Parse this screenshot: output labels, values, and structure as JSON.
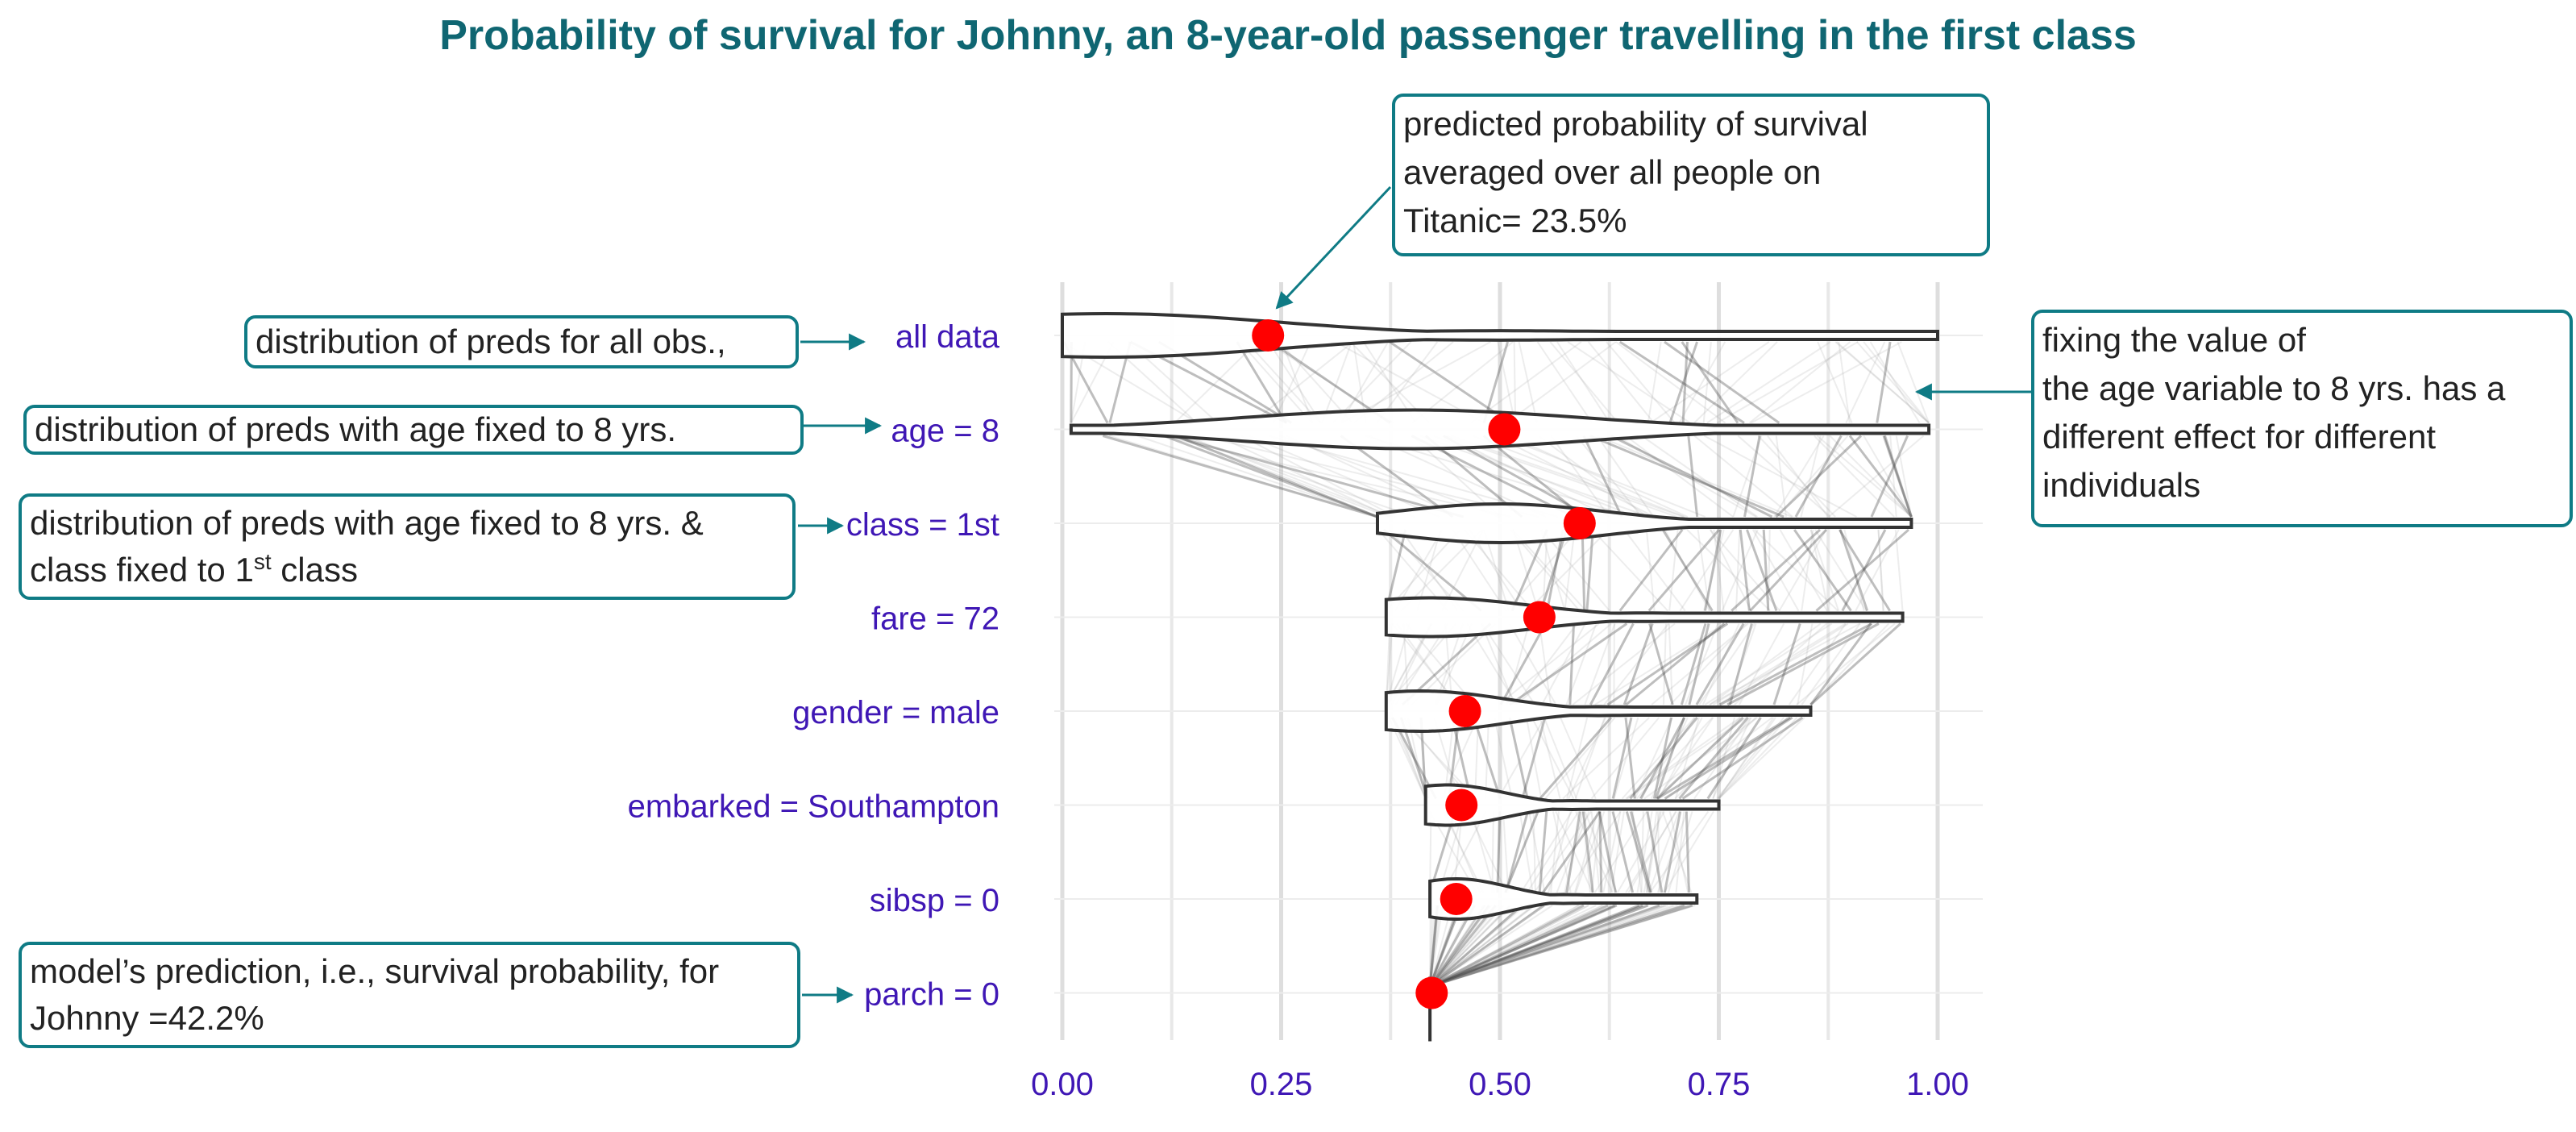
{
  "title": "Probability of survival for Johnny, an 8-year-old passenger travelling in the first class",
  "colors": {
    "title": "#0f6672",
    "axis_text": "#3f17b5",
    "callout_border": "#0f7b85",
    "dot": "#ff0000",
    "violin_stroke": "#333333",
    "grid": "#e6e6e6"
  },
  "chart_data": {
    "type": "violin",
    "title": "Probability of survival for Johnny, an 8-year-old passenger travelling in the first class",
    "xlim": [
      0,
      1.05
    ],
    "x_ticks": [
      0.0,
      0.25,
      0.5,
      0.75,
      1.0
    ],
    "x_tick_labels": [
      "0.00",
      "0.25",
      "0.50",
      "0.75",
      "1.00"
    ],
    "grid": true,
    "categories": [
      "all data",
      "age = 8",
      "class = 1st",
      "fare = 72",
      "gender = male",
      "embarked = Southampton",
      "sibsp = 0",
      "parch = 0"
    ],
    "mean_prediction": [
      0.235,
      0.505,
      0.591,
      0.545,
      0.46,
      0.456,
      0.45,
      0.422
    ],
    "violin_range": [
      [
        0.0,
        1.0
      ],
      [
        0.01,
        0.99
      ],
      [
        0.36,
        0.97
      ],
      [
        0.37,
        0.96
      ],
      [
        0.37,
        0.855
      ],
      [
        0.415,
        0.75
      ],
      [
        0.42,
        0.725
      ],
      [
        0.42,
        0.42
      ]
    ],
    "violin_mode": [
      0.05,
      0.4,
      0.5,
      0.42,
      0.41,
      0.44,
      0.45,
      0.43
    ]
  },
  "callouts": {
    "mean": {
      "lines": [
        " predicted probability of survival",
        "averaged over all people on",
        "Titanic= 23.5%"
      ]
    },
    "all_obs": {
      "text": " distribution of preds for all obs.,"
    },
    "age": {
      "text": " distribution of preds with age fixed to 8 yrs."
    },
    "class": {
      "line1": " distribution of preds with age fixed to 8 yrs. &",
      "line2_pre": "class fixed to 1",
      "line2_sup": "st",
      "line2_post": " class"
    },
    "prediction": {
      "lines": [
        "model’s prediction, i.e., survival probability, for",
        "Johnny =42.2%"
      ]
    },
    "fixing": {
      "lines": [
        " fixing the value of",
        "the age variable to 8 yrs. has a",
        "different effect for different",
        "individuals"
      ]
    }
  }
}
